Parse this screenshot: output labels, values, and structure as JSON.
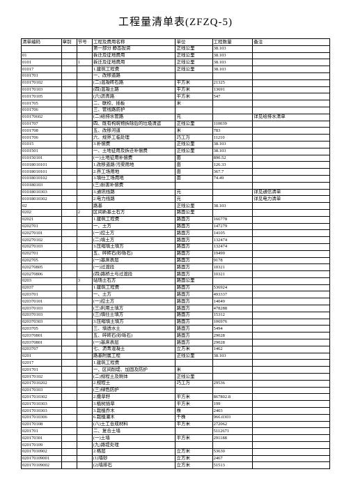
{
  "title": "工程量清单表(ZFZQ-5)",
  "columns": [
    "清单编码",
    "章别",
    "节号",
    "工程及费用名称",
    "单位",
    "工程数量",
    "备注"
  ],
  "rows": [
    [
      "",
      "",
      "",
      "第一部分 静态投资",
      "正线公里",
      "38.103",
      ""
    ],
    [
      "01",
      "",
      "",
      "拆迁及征地费用",
      "正线公里",
      "38.103",
      ""
    ],
    [
      "0101",
      "",
      "1",
      "拆迁及征地费用",
      "正线公里",
      "38.103",
      ""
    ],
    [
      "01017",
      "",
      "",
      "1.建筑工程费",
      "正线公里",
      "38.103",
      ""
    ],
    [
      "0101701",
      "",
      "",
      "一、改移道路",
      "",
      "",
      ""
    ],
    [
      "010170102",
      "",
      "",
      "(二)混凝砖石路",
      "平方米",
      "21325",
      ""
    ],
    [
      "010170103",
      "",
      "",
      "(四)混凝土路",
      "平方米",
      "13691",
      ""
    ],
    [
      "010170105",
      "",
      "",
      "(六)沥青路",
      "平方米",
      "547",
      ""
    ],
    [
      "0101705",
      "",
      "",
      "二、联校、插板",
      "米",
      "",
      ""
    ],
    [
      "0101706",
      "",
      "",
      "三、管线路防护",
      "",
      "",
      ""
    ],
    [
      "010170602",
      "",
      "",
      "(二)给排水管路",
      "元",
      "",
      "详见给排水清单"
    ],
    [
      "0101707",
      "",
      "",
      "四、既有构筑物拆除后的垃圾清运",
      "正线公里",
      "110039",
      ""
    ],
    [
      "0101708",
      "",
      "",
      "五、改移河道",
      "米",
      "783",
      ""
    ],
    [
      "0101706",
      "",
      "",
      "六、规界工临处理",
      "巧工万",
      "11210",
      ""
    ],
    [
      "01015",
      "",
      "",
      "3.补偿费",
      "正线公里",
      "38.103",
      ""
    ],
    [
      "0101501",
      "",
      "",
      "一、土地征用及拆迁补偿费",
      "正线公里",
      "38.103",
      ""
    ],
    [
      "010150101",
      "",
      "",
      "(一)土地征用补偿费",
      "亩",
      "890.52",
      ""
    ],
    [
      "01018010101",
      "",
      "",
      "1.改移道路/污渠用地",
      "亩",
      "126.33",
      ""
    ],
    [
      "01018010101",
      "",
      "",
      "2.界工场用地",
      "亩",
      "367.7",
      ""
    ],
    [
      "01018010102",
      "",
      "",
      "3.填仕工场用地",
      "亩",
      "74.49",
      ""
    ],
    [
      "010180103",
      "",
      "",
      "(三)损害补偿费",
      "",
      "",
      ""
    ],
    [
      "01018010303",
      "",
      "",
      "3.通讯线路",
      "元",
      "",
      "详见通信清单"
    ],
    [
      "01018010302",
      "",
      "",
      "2.电力线路",
      "元",
      "",
      "详见电力清单"
    ],
    [
      "02",
      "",
      "",
      "路基",
      "正线公里",
      "38.103",
      ""
    ],
    [
      "0202",
      "",
      "2",
      "区间新基土石方",
      "路面公里",
      "",
      ""
    ],
    [
      "02021",
      "",
      "",
      "1.建筑工程费",
      "路面方",
      "166778",
      ""
    ],
    [
      "0202701",
      "",
      "",
      "一、土方",
      "路面方",
      "147279",
      ""
    ],
    [
      "020270101",
      "",
      "",
      "(一)控土方",
      "路面方",
      "14105",
      ""
    ],
    [
      "020270102",
      "",
      "",
      "(二)填土方",
      "路面方",
      "132474",
      ""
    ],
    [
      "020270103",
      "",
      "",
      "3.压缩填土填方",
      "路面方",
      "132474",
      ""
    ],
    [
      "0202701",
      "",
      "",
      "五、碎砖石(砂砾石)",
      "路面方",
      "19499",
      ""
    ],
    [
      "0202705",
      "",
      "",
      "(一)基床表层",
      "路面方",
      "9178",
      ""
    ],
    [
      "020270805",
      "",
      "",
      "(一)过渡段",
      "路面方",
      "10321",
      ""
    ],
    [
      "020270806",
      "",
      "",
      "(四)路桥土与过渡段",
      "路面方",
      "10321",
      ""
    ],
    [
      "0203",
      "",
      "3",
      "站场土石方",
      "路面公里",
      "",
      ""
    ],
    [
      "02037",
      "",
      "",
      "1.建筑工程费",
      "路面方",
      "536924",
      ""
    ],
    [
      "0203701",
      "",
      "",
      "一、土方",
      "路面方",
      "493337",
      ""
    ],
    [
      "020370101",
      "",
      "",
      "(一)控土方",
      "路面方",
      "14049",
      ""
    ],
    [
      "020370103",
      "",
      "",
      "(三)利用土填方",
      "路面方",
      "478288",
      ""
    ],
    [
      "020370103",
      "",
      "",
      "(三)填仕土填方",
      "路面方",
      "15312",
      ""
    ],
    [
      "020370303",
      "",
      "",
      "3.压缩填土填方",
      "路面方",
      "106976",
      ""
    ],
    [
      "0203705",
      "",
      "",
      "三、填透水土",
      "路面方",
      "5494",
      ""
    ],
    [
      "020370801",
      "",
      "",
      "五、碎砖石(砂砾石)",
      "路面方",
      "29028",
      ""
    ],
    [
      "020370801",
      "",
      "",
      "(一)基床表层",
      "路面方",
      "29028",
      ""
    ],
    [
      "0203707",
      "",
      "",
      "七、沥青混凝土",
      "立方米",
      "1462",
      ""
    ],
    [
      "0201",
      "",
      "",
      "路基附属工程",
      "正线公里",
      "38.103",
      ""
    ],
    [
      "02017",
      "",
      "",
      "1.建筑工程费",
      "",
      "",
      ""
    ],
    [
      "0201701",
      "",
      "",
      "一、区间削堤、加固及防护",
      "米",
      "",
      ""
    ],
    [
      "020170102",
      "",
      "",
      "(二)规程土及刷体",
      "正线公里",
      "",
      ""
    ],
    [
      "02017010202",
      "",
      "",
      "2.规程土",
      "巧工万",
      "29536",
      ""
    ],
    [
      "020170103",
      "",
      "",
      "(三)绿色防护",
      "",
      "",
      ""
    ],
    [
      "02017010302",
      "",
      "",
      "2.撒草籽",
      "平方米",
      "867802.8",
      ""
    ],
    [
      "02017010303",
      "",
      "",
      "3.植树插草",
      "平方米",
      "199",
      ""
    ],
    [
      "02017010303",
      "",
      "",
      "3.栽植乔木",
      "株",
      "2403",
      ""
    ],
    [
      "02017010306",
      "",
      "",
      "6.栽植灌木",
      "千株",
      "966.0303",
      ""
    ],
    [
      "020170108",
      "",
      "",
      "(八)土工合成材料",
      "平方米",
      "272062",
      ""
    ],
    [
      "0201701",
      "",
      "",
      "二、复合土墙",
      "",
      "5112671",
      ""
    ],
    [
      "020170301",
      "",
      "",
      "(一)土墙",
      "平方米",
      "291188",
      ""
    ],
    [
      "020170109",
      "",
      "",
      "(九)路堤处理",
      "",
      "",
      ""
    ],
    [
      "02017010902",
      "",
      "",
      "2.格层",
      "立方米",
      "53630",
      ""
    ],
    [
      "020170109001",
      "",
      "",
      "(1)墙砂",
      "立方米",
      "2467",
      ""
    ],
    [
      "020170109002",
      "",
      "",
      "(2)墙排石",
      "立方米",
      "51513",
      ""
    ]
  ],
  "style": {
    "background": "#ffffff",
    "border_color": "#000000",
    "title_fontsize": 15,
    "cell_fontsize": 6.5
  }
}
